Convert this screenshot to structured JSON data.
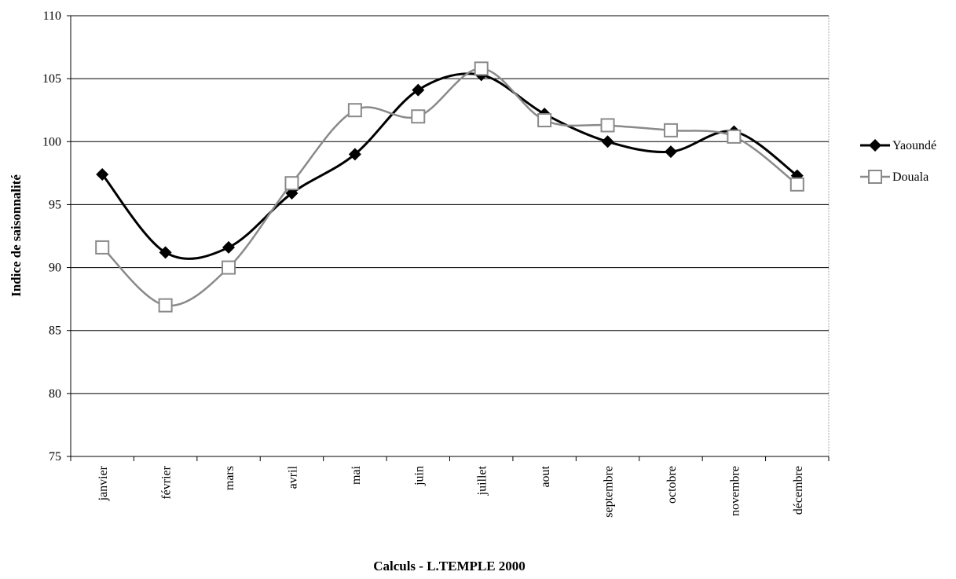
{
  "chart_data": {
    "type": "line",
    "y_label": "Indice de saisonnalité",
    "x_label": "Calculs - L.TEMPLE 2000",
    "categories": [
      "janvier",
      "février",
      "mars",
      "avril",
      "mai",
      "juin",
      "juillet",
      "aout",
      "septembre",
      "octobre",
      "novembre",
      "décembre"
    ],
    "series": [
      {
        "name": "Yaoundé",
        "color": "#000000",
        "marker": "diamond",
        "values": [
          97.4,
          91.2,
          91.6,
          95.9,
          99.0,
          104.1,
          105.3,
          102.2,
          100.0,
          99.2,
          100.8,
          97.3
        ]
      },
      {
        "name": "Douala",
        "color": "#8a8a8a",
        "marker": "square",
        "values": [
          91.6,
          87.0,
          90.0,
          96.7,
          102.5,
          102.0,
          105.8,
          101.7,
          101.3,
          100.9,
          100.4,
          96.6
        ]
      }
    ],
    "ylim": [
      75,
      110
    ],
    "yticks": [
      75,
      80,
      85,
      90,
      95,
      100,
      105,
      110
    ],
    "grid": true,
    "smooth": true,
    "legend_position": "right"
  }
}
